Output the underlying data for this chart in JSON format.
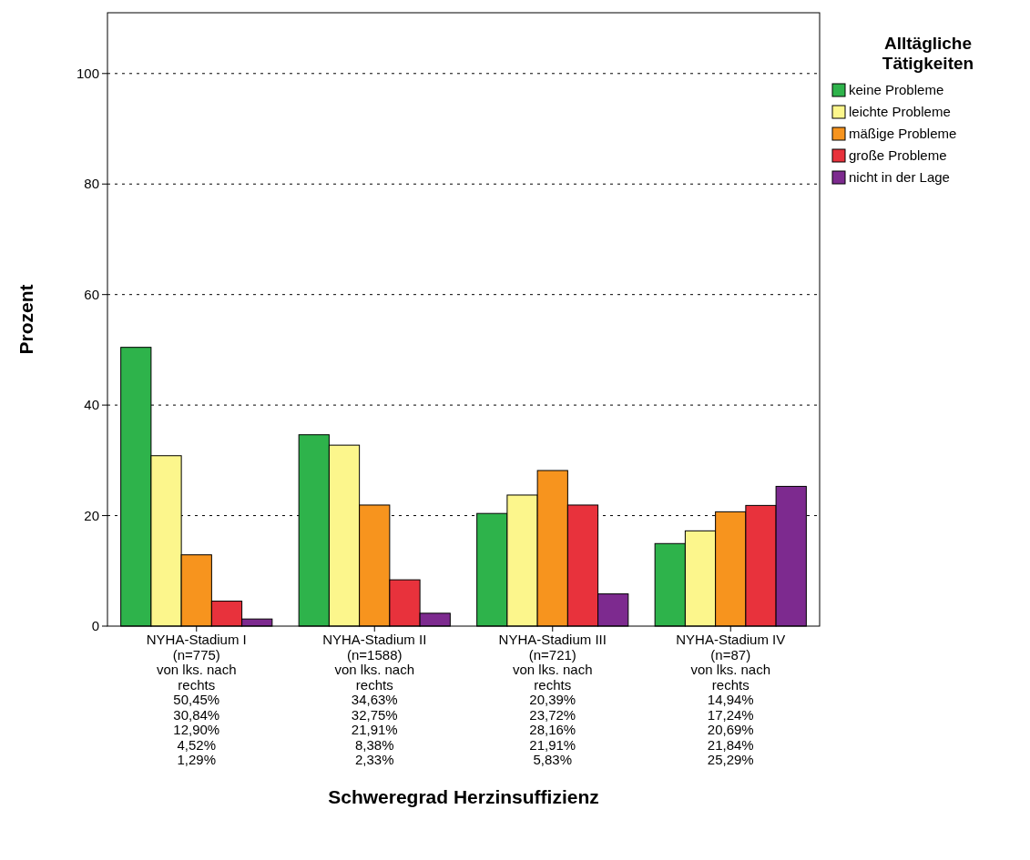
{
  "chart_data": {
    "type": "bar",
    "xlabel": "Schweregrad Herzinsuffizienz",
    "ylabel": "Prozent",
    "legend_title": "Alltägliche\nTätigkeiten",
    "categories": [
      "NYHA-Stadium I\n(n=775)\nvon lks. nach\nrechts",
      "NYHA-Stadium II\n(n=1588)\nvon lks. nach\nrechts",
      "NYHA-Stadium III\n(n=721)\nvon lks. nach\nrechts",
      "NYHA-Stadium IV\n(n=87)\nvon lks. nach\nrechts"
    ],
    "series": [
      {
        "name": "keine Probleme",
        "color": "#2eb34b",
        "values": [
          50.45,
          34.63,
          20.39,
          14.94
        ],
        "value_labels": [
          "50,45%",
          "34,63%",
          "20,39%",
          "14,94%"
        ]
      },
      {
        "name": "leichte Probleme",
        "color": "#fcf68c",
        "values": [
          30.84,
          32.75,
          23.72,
          17.24
        ],
        "value_labels": [
          "30,84%",
          "32,75%",
          "23,72%",
          "17,24%"
        ]
      },
      {
        "name": "mäßige Probleme",
        "color": "#f7941e",
        "values": [
          12.9,
          21.91,
          28.16,
          20.69
        ],
        "value_labels": [
          "12,90%",
          "21,91%",
          "28,16%",
          "20,69%"
        ]
      },
      {
        "name": "große Probleme",
        "color": "#e8323c",
        "values": [
          4.52,
          8.38,
          21.91,
          21.84
        ],
        "value_labels": [
          "4,52%",
          "8,38%",
          "21,91%",
          "21,84%"
        ]
      },
      {
        "name": "nicht in der Lage",
        "color": "#7d2a8f",
        "values": [
          1.29,
          2.33,
          5.83,
          25.29
        ],
        "value_labels": [
          "1,29%",
          "2,33%",
          "5,83%",
          "25,29%"
        ]
      }
    ],
    "ylim": [
      0,
      111
    ],
    "yticks": [
      0,
      20,
      40,
      60,
      80,
      100
    ],
    "grid": "y",
    "legend": "top right"
  }
}
